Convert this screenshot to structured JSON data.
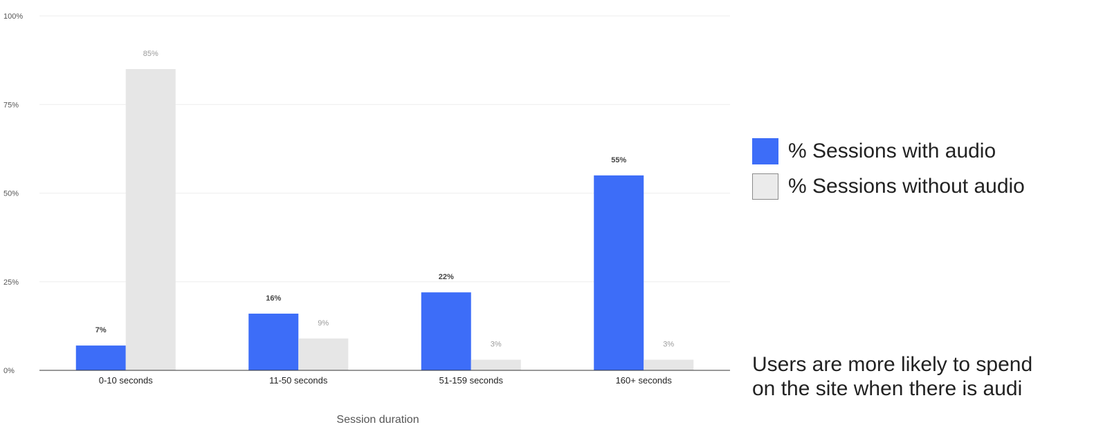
{
  "chart_data": {
    "type": "bar",
    "categories": [
      "0-10 seconds",
      "11-50 seconds",
      "51-159 seconds",
      "160+ seconds"
    ],
    "series": [
      {
        "name": "% Sessions with audio",
        "values": [
          7,
          16,
          22,
          55
        ],
        "labels": [
          "7%",
          "16%",
          "22%",
          "55%"
        ],
        "color": "#3d6df8"
      },
      {
        "name": "% Sessions without audio",
        "values": [
          85,
          9,
          3,
          3
        ],
        "labels": [
          "85%",
          "9%",
          "3%",
          "3%"
        ],
        "color": "#e6e6e6"
      }
    ],
    "xlabel": "Session duration",
    "ylabel": "",
    "ylim": [
      0,
      100
    ],
    "yticks": [
      0,
      25,
      50,
      75,
      100
    ],
    "ytick_labels": [
      "0%",
      "25%",
      "50%",
      "75%",
      "100%"
    ],
    "grid": true,
    "legend_position": "right"
  },
  "legend": {
    "items": [
      {
        "label": "% Sessions with audio",
        "color": "#3d6df8"
      },
      {
        "label": "% Sessions without audio",
        "color": "#ebebeb"
      }
    ]
  },
  "note": {
    "line1": "Users are more likely to spend",
    "line2": "on the site when there is audi"
  }
}
